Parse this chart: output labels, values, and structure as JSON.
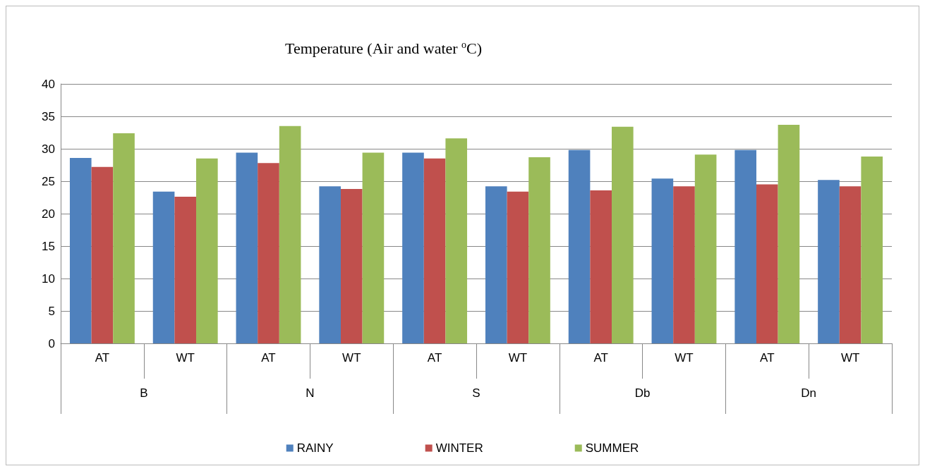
{
  "chart_data": {
    "type": "bar",
    "title": "Temperature (Air and water $^{o}$C)",
    "categories": [
      "AT",
      "WT",
      "AT",
      "WT",
      "AT",
      "WT",
      "AT",
      "WT",
      "AT",
      "WT"
    ],
    "annotations": [
      "B",
      "N",
      "S",
      "Db",
      "Dn"
    ],
    "series": [
      {
        "name": "RAINY",
        "color": "#4f81bd",
        "values": [
          28.6,
          23.4,
          29.4,
          24.2,
          29.4,
          24.2,
          29.8,
          25.4,
          29.8,
          25.2
        ]
      },
      {
        "name": "WINTER",
        "color": "#c0504d",
        "values": [
          27.2,
          22.6,
          27.8,
          23.8,
          28.5,
          23.4,
          23.6,
          24.2,
          24.5,
          24.2
        ]
      },
      {
        "name": "SUMMER",
        "color": "#9bbb59",
        "values": [
          32.4,
          28.5,
          33.5,
          29.4,
          31.6,
          28.7,
          33.4,
          29.1,
          33.7,
          28.8
        ]
      }
    ],
    "ylim": [
      0,
      40
    ],
    "yticks": [
      0,
      5,
      10,
      15,
      20,
      25,
      30,
      35,
      40
    ],
    "grid": "y",
    "legend": "bottom"
  }
}
